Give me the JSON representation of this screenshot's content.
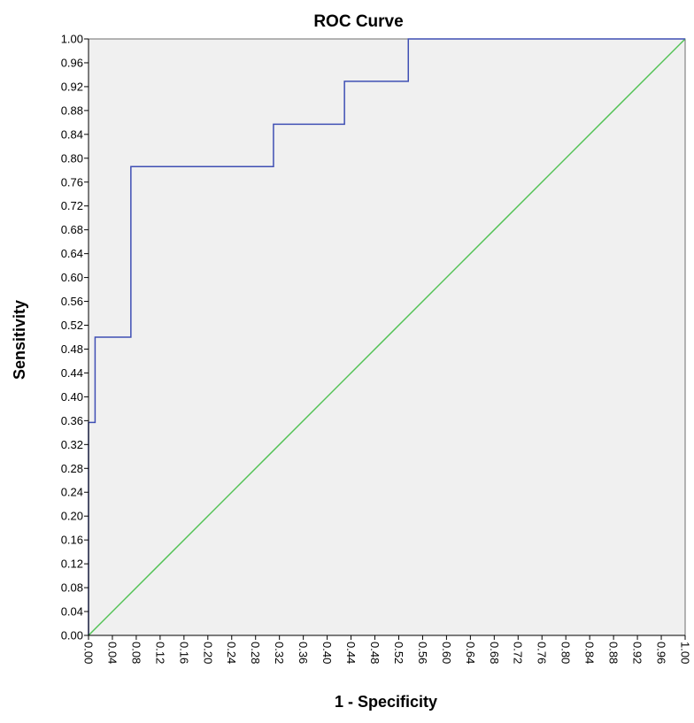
{
  "chart_data": {
    "type": "line",
    "title": "ROC Curve",
    "xlabel": "1 - Specificity",
    "ylabel": "Sensitivity",
    "xlim": [
      0,
      1
    ],
    "ylim": [
      0,
      1
    ],
    "grid": false,
    "x_ticks": [
      "0.00",
      "0.04",
      "0.08",
      "0.12",
      "0.16",
      "0.20",
      "0.24",
      "0.28",
      "0.32",
      "0.36",
      "0.40",
      "0.44",
      "0.48",
      "0.52",
      "0.56",
      "0.60",
      "0.64",
      "0.68",
      "0.72",
      "0.76",
      "0.80",
      "0.84",
      "0.88",
      "0.92",
      "0.96",
      "1.00"
    ],
    "y_ticks": [
      "0.00",
      "0.04",
      "0.08",
      "0.12",
      "0.16",
      "0.20",
      "0.24",
      "0.28",
      "0.32",
      "0.36",
      "0.40",
      "0.44",
      "0.48",
      "0.52",
      "0.56",
      "0.60",
      "0.64",
      "0.68",
      "0.72",
      "0.76",
      "0.80",
      "0.84",
      "0.88",
      "0.92",
      "0.96",
      "1.00"
    ],
    "series": [
      {
        "color": "#3f4fb4",
        "x": [
          0.0,
          0.0,
          0.011,
          0.011,
          0.071,
          0.071,
          0.31,
          0.31,
          0.429,
          0.429,
          0.536,
          0.536,
          1.0
        ],
        "y": [
          0.0,
          0.357,
          0.357,
          0.5,
          0.5,
          0.786,
          0.786,
          0.857,
          0.857,
          0.929,
          0.929,
          1.0,
          1.0
        ]
      },
      {
        "color": "#52c255",
        "x": [
          0,
          1
        ],
        "y": [
          0,
          1
        ]
      }
    ],
    "plot_background": "#f0f0f0"
  }
}
